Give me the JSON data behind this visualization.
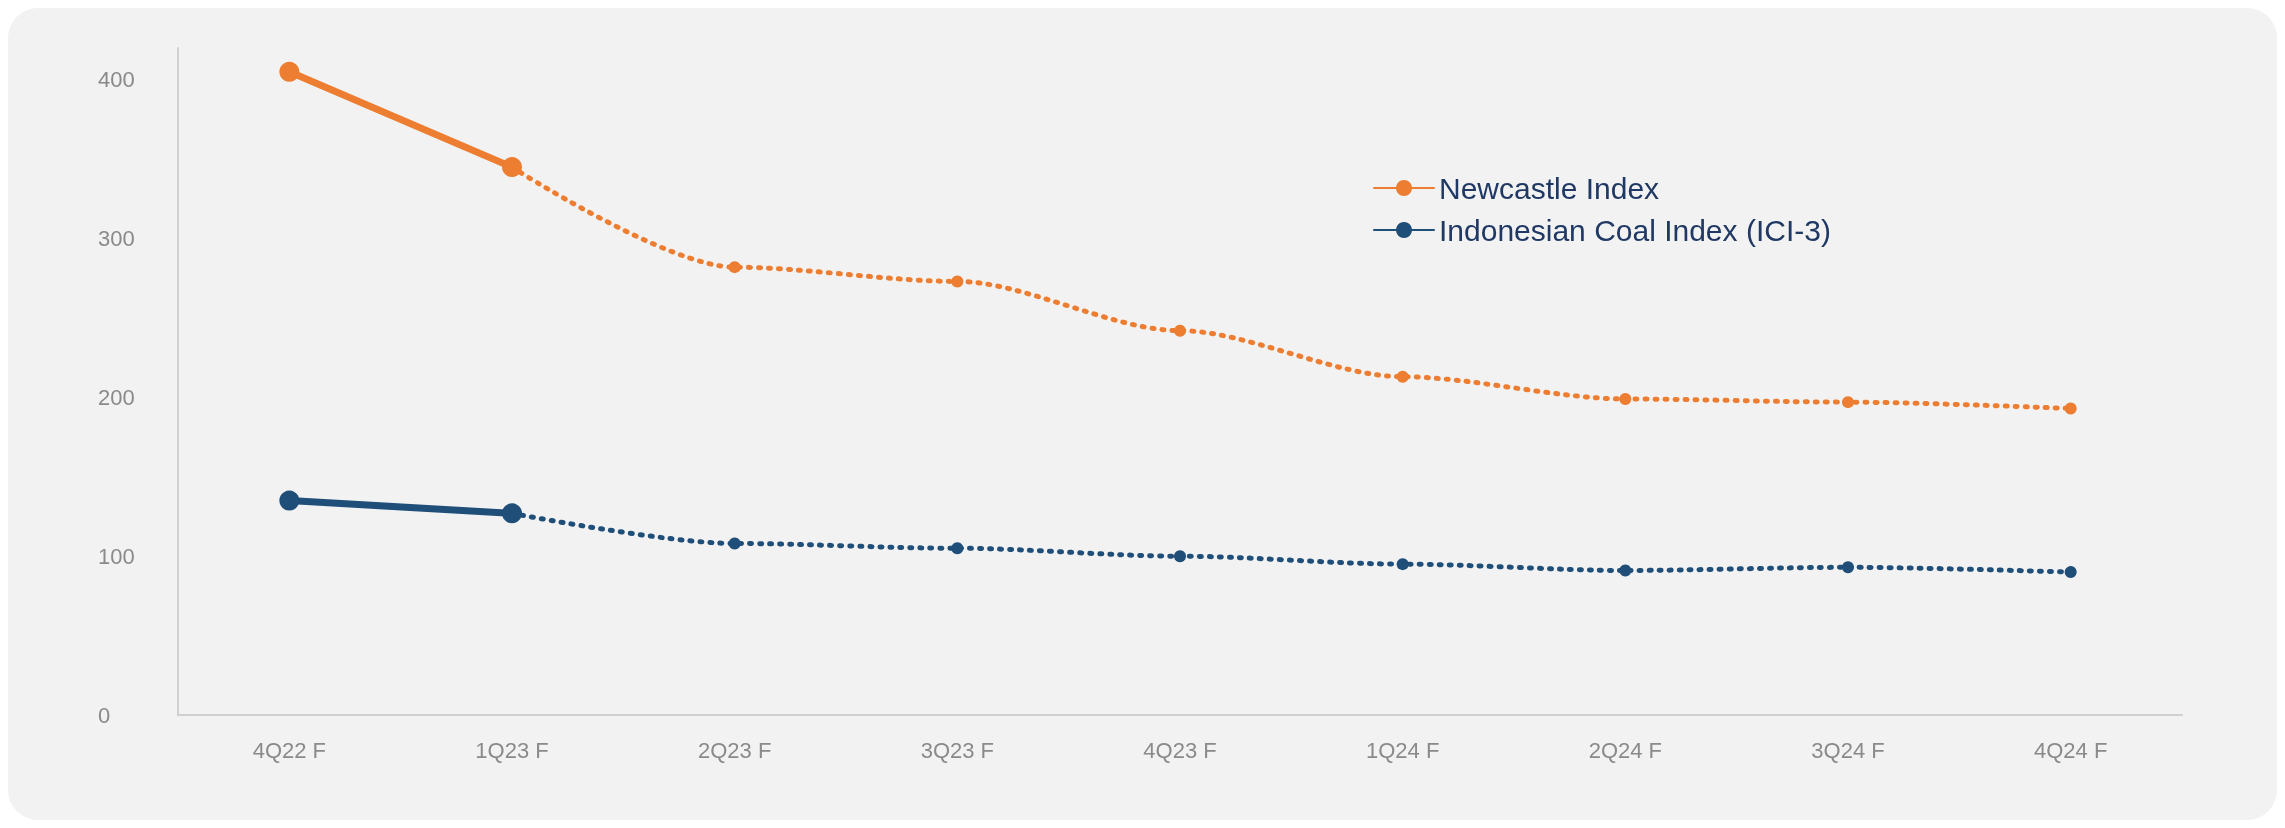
{
  "chart_data": {
    "type": "line",
    "categories": [
      "4Q22 F",
      "1Q23 F",
      "2Q23 F",
      "3Q23 F",
      "4Q23 F",
      "1Q24 F",
      "2Q24 F",
      "3Q24 F",
      "4Q24 F"
    ],
    "series": [
      {
        "name": "Newcastle Index",
        "color": "#ed7d31",
        "line_style": "solid",
        "values": [
          405,
          345,
          null,
          null,
          null,
          null,
          null,
          null,
          null
        ]
      },
      {
        "color": "#ed7d31",
        "line_style": "dotted",
        "values": [
          null,
          345,
          282,
          273,
          242,
          213,
          199,
          197,
          193
        ]
      },
      {
        "name": "Indonesian Coal Index (ICI-3)",
        "color": "#1f4e79",
        "line_style": "solid",
        "values": [
          135,
          127,
          null,
          null,
          null,
          null,
          null,
          null,
          null
        ]
      },
      {
        "color": "#1f4e79",
        "line_style": "dotted",
        "values": [
          null,
          127,
          108,
          105,
          100,
          95,
          91,
          93,
          90
        ]
      }
    ],
    "yticks": [
      0,
      100,
      200,
      300,
      400
    ],
    "ylim": [
      0,
      420
    ],
    "grid": false,
    "legend": "top right",
    "marker": "circle"
  }
}
